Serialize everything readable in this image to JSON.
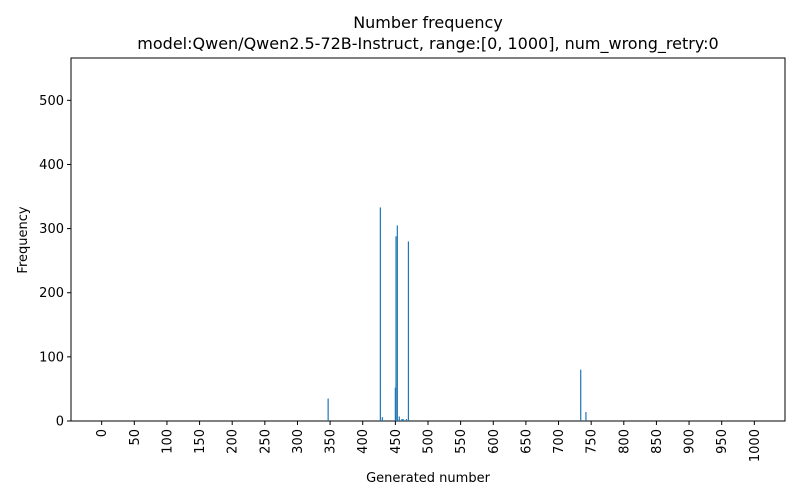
{
  "chart_data": {
    "type": "bar",
    "title": "Number frequency",
    "subtitle": "model:Qwen/Qwen2.5-72B-Instruct, range:[0, 1000], num_wrong_retry:0",
    "xlabel": "Generated number",
    "ylabel": "Frequency",
    "xlim": [
      -47,
      1047
    ],
    "ylim": [
      0,
      566
    ],
    "x_ticks": [
      0,
      50,
      100,
      150,
      200,
      250,
      300,
      350,
      400,
      450,
      500,
      550,
      600,
      650,
      700,
      750,
      800,
      850,
      900,
      950,
      1000
    ],
    "y_ticks": [
      0,
      100,
      200,
      300,
      400,
      500
    ],
    "bar_color": "#1f77b4",
    "x": [
      347,
      427,
      430,
      450,
      451,
      453,
      456,
      460,
      462,
      467,
      470,
      734,
      742
    ],
    "values": [
      35,
      333,
      6,
      52,
      288,
      305,
      7,
      3,
      3,
      3,
      280,
      80,
      14
    ]
  }
}
